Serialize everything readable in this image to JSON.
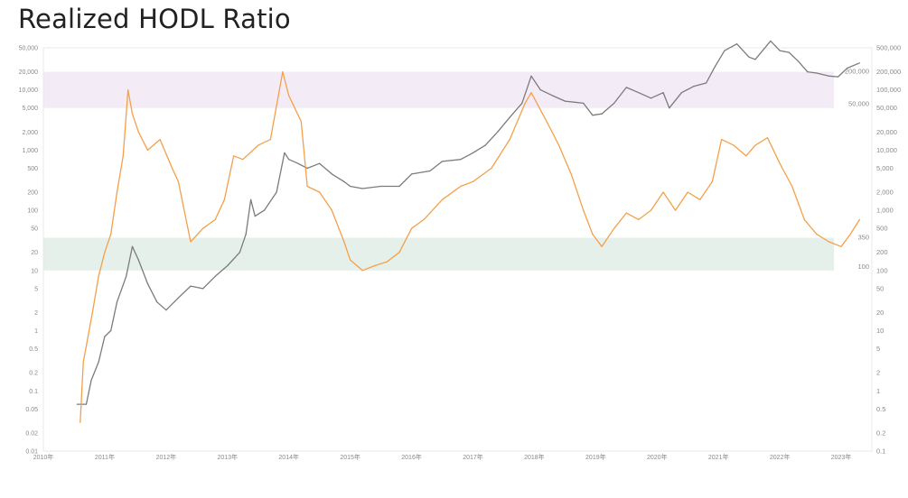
{
  "page": {
    "title": "Realized HODL Ratio"
  },
  "colors": {
    "price": "#7b7b7b",
    "ratio": "#f4a04a",
    "sell_band": "#f3ecf6",
    "buy_band": "#e6f0ea",
    "grid": "#e8e8e8"
  },
  "chart_data": {
    "type": "line",
    "title": "Realized HODL Ratio",
    "xlabel": "",
    "x_range": [
      2010.0,
      2023.5
    ],
    "x_ticks": [
      {
        "value": 2010,
        "label": "2010年"
      },
      {
        "value": 2011,
        "label": "2011年"
      },
      {
        "value": 2012,
        "label": "2012年"
      },
      {
        "value": 2013,
        "label": "2013年"
      },
      {
        "value": 2014,
        "label": "2014年"
      },
      {
        "value": 2015,
        "label": "2015年"
      },
      {
        "value": 2016,
        "label": "2016年"
      },
      {
        "value": 2017,
        "label": "2017年"
      },
      {
        "value": 2018,
        "label": "2018年"
      },
      {
        "value": 2019,
        "label": "2019年"
      },
      {
        "value": 2020,
        "label": "2020年"
      },
      {
        "value": 2021,
        "label": "2021年"
      },
      {
        "value": 2022,
        "label": "2022年"
      },
      {
        "value": 2023,
        "label": "2023年"
      }
    ],
    "left_axis": {
      "scale": "log",
      "range": [
        0.01,
        50000
      ],
      "ticks": [
        {
          "value": 50000,
          "label": "50,000"
        },
        {
          "value": 20000,
          "label": "20,000"
        },
        {
          "value": 10000,
          "label": "10,000"
        },
        {
          "value": 5000,
          "label": "5,000"
        },
        {
          "value": 2000,
          "label": "2,000"
        },
        {
          "value": 1000,
          "label": "1,000"
        },
        {
          "value": 500,
          "label": "500"
        },
        {
          "value": 200,
          "label": "200"
        },
        {
          "value": 100,
          "label": "100"
        },
        {
          "value": 50,
          "label": "50"
        },
        {
          "value": 20,
          "label": "20"
        },
        {
          "value": 10,
          "label": "10"
        },
        {
          "value": 5,
          "label": "5"
        },
        {
          "value": 2,
          "label": "2"
        },
        {
          "value": 1,
          "label": "1"
        },
        {
          "value": 0.5,
          "label": "0.5"
        },
        {
          "value": 0.2,
          "label": "0.2"
        },
        {
          "value": 0.1,
          "label": "0.1"
        },
        {
          "value": 0.05,
          "label": "0.05"
        },
        {
          "value": 0.02,
          "label": "0.02"
        },
        {
          "value": 0.01,
          "label": "0.01"
        }
      ]
    },
    "right_axis": {
      "scale": "log",
      "range": [
        0.1,
        500000
      ],
      "ticks": [
        {
          "value": 500000,
          "label": "500,000"
        },
        {
          "value": 200000,
          "label": "200,000"
        },
        {
          "value": 100000,
          "label": "100,000"
        },
        {
          "value": 50000,
          "label": "50,000"
        },
        {
          "value": 20000,
          "label": "20,000"
        },
        {
          "value": 10000,
          "label": "10,000"
        },
        {
          "value": 5000,
          "label": "5,000"
        },
        {
          "value": 2000,
          "label": "2,000"
        },
        {
          "value": 1000,
          "label": "1,000"
        },
        {
          "value": 500,
          "label": "500"
        },
        {
          "value": 200,
          "label": "200"
        },
        {
          "value": 100,
          "label": "100"
        },
        {
          "value": 50,
          "label": "50"
        },
        {
          "value": 20,
          "label": "20"
        },
        {
          "value": 10,
          "label": "10"
        },
        {
          "value": 5,
          "label": "5"
        },
        {
          "value": 2,
          "label": "2"
        },
        {
          "value": 1,
          "label": "1"
        },
        {
          "value": 0.5,
          "label": "0.5"
        },
        {
          "value": 0.2,
          "label": "0.2"
        },
        {
          "value": 0.1,
          "label": "0.1"
        }
      ]
    },
    "bands": [
      {
        "axis": "right",
        "from": 50000,
        "to": 200000,
        "label": "200,000",
        "label2": "50,000",
        "color": "#f3ecf6"
      },
      {
        "axis": "right",
        "from": 100,
        "to": 350,
        "label": "350",
        "label2": "100",
        "color": "#e6f0ea"
      }
    ],
    "series": [
      {
        "axis": "left",
        "color": "#7b7b7b",
        "points": [
          [
            2010.55,
            0.06
          ],
          [
            2010.7,
            0.06
          ],
          [
            2010.78,
            0.15
          ],
          [
            2010.9,
            0.3
          ],
          [
            2011.0,
            0.8
          ],
          [
            2011.1,
            1.0
          ],
          [
            2011.2,
            3.0
          ],
          [
            2011.35,
            8.0
          ],
          [
            2011.45,
            25
          ],
          [
            2011.55,
            15
          ],
          [
            2011.7,
            6
          ],
          [
            2011.85,
            3.0
          ],
          [
            2012.0,
            2.2
          ],
          [
            2012.2,
            3.5
          ],
          [
            2012.4,
            5.5
          ],
          [
            2012.6,
            5.0
          ],
          [
            2012.8,
            8.0
          ],
          [
            2013.0,
            12
          ],
          [
            2013.2,
            20
          ],
          [
            2013.3,
            40
          ],
          [
            2013.38,
            150
          ],
          [
            2013.45,
            80
          ],
          [
            2013.6,
            100
          ],
          [
            2013.8,
            200
          ],
          [
            2013.93,
            900
          ],
          [
            2014.0,
            700
          ],
          [
            2014.15,
            600
          ],
          [
            2014.3,
            500
          ],
          [
            2014.5,
            600
          ],
          [
            2014.7,
            400
          ],
          [
            2014.9,
            300
          ],
          [
            2015.0,
            250
          ],
          [
            2015.2,
            230
          ],
          [
            2015.5,
            250
          ],
          [
            2015.8,
            250
          ],
          [
            2016.0,
            400
          ],
          [
            2016.3,
            450
          ],
          [
            2016.5,
            650
          ],
          [
            2016.8,
            700
          ],
          [
            2017.0,
            900
          ],
          [
            2017.2,
            1200
          ],
          [
            2017.4,
            2000
          ],
          [
            2017.6,
            3500
          ],
          [
            2017.8,
            6000
          ],
          [
            2017.95,
            17000
          ],
          [
            2018.1,
            10000
          ],
          [
            2018.3,
            8000
          ],
          [
            2018.5,
            6500
          ],
          [
            2018.8,
            6000
          ],
          [
            2018.95,
            3800
          ],
          [
            2019.1,
            4000
          ],
          [
            2019.3,
            6000
          ],
          [
            2019.5,
            11000
          ],
          [
            2019.7,
            9000
          ],
          [
            2019.9,
            7300
          ],
          [
            2020.1,
            9000
          ],
          [
            2020.2,
            5000
          ],
          [
            2020.4,
            9000
          ],
          [
            2020.6,
            11500
          ],
          [
            2020.8,
            13000
          ],
          [
            2020.95,
            25000
          ],
          [
            2021.1,
            45000
          ],
          [
            2021.3,
            58000
          ],
          [
            2021.5,
            35000
          ],
          [
            2021.6,
            32000
          ],
          [
            2021.85,
            65000
          ],
          [
            2022.0,
            45000
          ],
          [
            2022.15,
            42000
          ],
          [
            2022.3,
            30000
          ],
          [
            2022.45,
            20000
          ],
          [
            2022.6,
            19000
          ],
          [
            2022.8,
            17000
          ],
          [
            2022.95,
            16500
          ],
          [
            2023.1,
            23000
          ],
          [
            2023.3,
            28000
          ]
        ]
      },
      {
        "axis": "right",
        "color": "#f4a04a",
        "points": [
          [
            2010.6,
            0.3
          ],
          [
            2010.65,
            3
          ],
          [
            2010.8,
            20
          ],
          [
            2010.9,
            80
          ],
          [
            2011.0,
            200
          ],
          [
            2011.1,
            400
          ],
          [
            2011.2,
            2000
          ],
          [
            2011.3,
            8000
          ],
          [
            2011.38,
            100000
          ],
          [
            2011.45,
            40000
          ],
          [
            2011.55,
            20000
          ],
          [
            2011.7,
            10000
          ],
          [
            2011.9,
            15000
          ],
          [
            2012.1,
            5000
          ],
          [
            2012.2,
            3000
          ],
          [
            2012.4,
            300
          ],
          [
            2012.6,
            500
          ],
          [
            2012.8,
            700
          ],
          [
            2012.95,
            1500
          ],
          [
            2013.1,
            8000
          ],
          [
            2013.25,
            7000
          ],
          [
            2013.5,
            12000
          ],
          [
            2013.7,
            15000
          ],
          [
            2013.9,
            200000
          ],
          [
            2014.0,
            80000
          ],
          [
            2014.2,
            30000
          ],
          [
            2014.3,
            2500
          ],
          [
            2014.5,
            2000
          ],
          [
            2014.7,
            1000
          ],
          [
            2014.9,
            300
          ],
          [
            2015.0,
            150
          ],
          [
            2015.2,
            100
          ],
          [
            2015.4,
            120
          ],
          [
            2015.6,
            140
          ],
          [
            2015.8,
            200
          ],
          [
            2016.0,
            500
          ],
          [
            2016.2,
            700
          ],
          [
            2016.5,
            1500
          ],
          [
            2016.8,
            2500
          ],
          [
            2017.0,
            3000
          ],
          [
            2017.3,
            5000
          ],
          [
            2017.6,
            15000
          ],
          [
            2017.85,
            60000
          ],
          [
            2017.95,
            90000
          ],
          [
            2018.2,
            30000
          ],
          [
            2018.4,
            12000
          ],
          [
            2018.6,
            4000
          ],
          [
            2018.8,
            1000
          ],
          [
            2018.95,
            400
          ],
          [
            2019.1,
            250
          ],
          [
            2019.3,
            500
          ],
          [
            2019.5,
            900
          ],
          [
            2019.7,
            700
          ],
          [
            2019.9,
            1000
          ],
          [
            2020.1,
            2000
          ],
          [
            2020.3,
            1000
          ],
          [
            2020.5,
            2000
          ],
          [
            2020.7,
            1500
          ],
          [
            2020.9,
            3000
          ],
          [
            2021.05,
            15000
          ],
          [
            2021.25,
            12000
          ],
          [
            2021.45,
            8000
          ],
          [
            2021.6,
            12000
          ],
          [
            2021.8,
            16000
          ],
          [
            2022.0,
            6000
          ],
          [
            2022.2,
            2500
          ],
          [
            2022.4,
            700
          ],
          [
            2022.6,
            400
          ],
          [
            2022.8,
            300
          ],
          [
            2023.0,
            250
          ],
          [
            2023.15,
            400
          ],
          [
            2023.3,
            700
          ]
        ]
      }
    ]
  }
}
